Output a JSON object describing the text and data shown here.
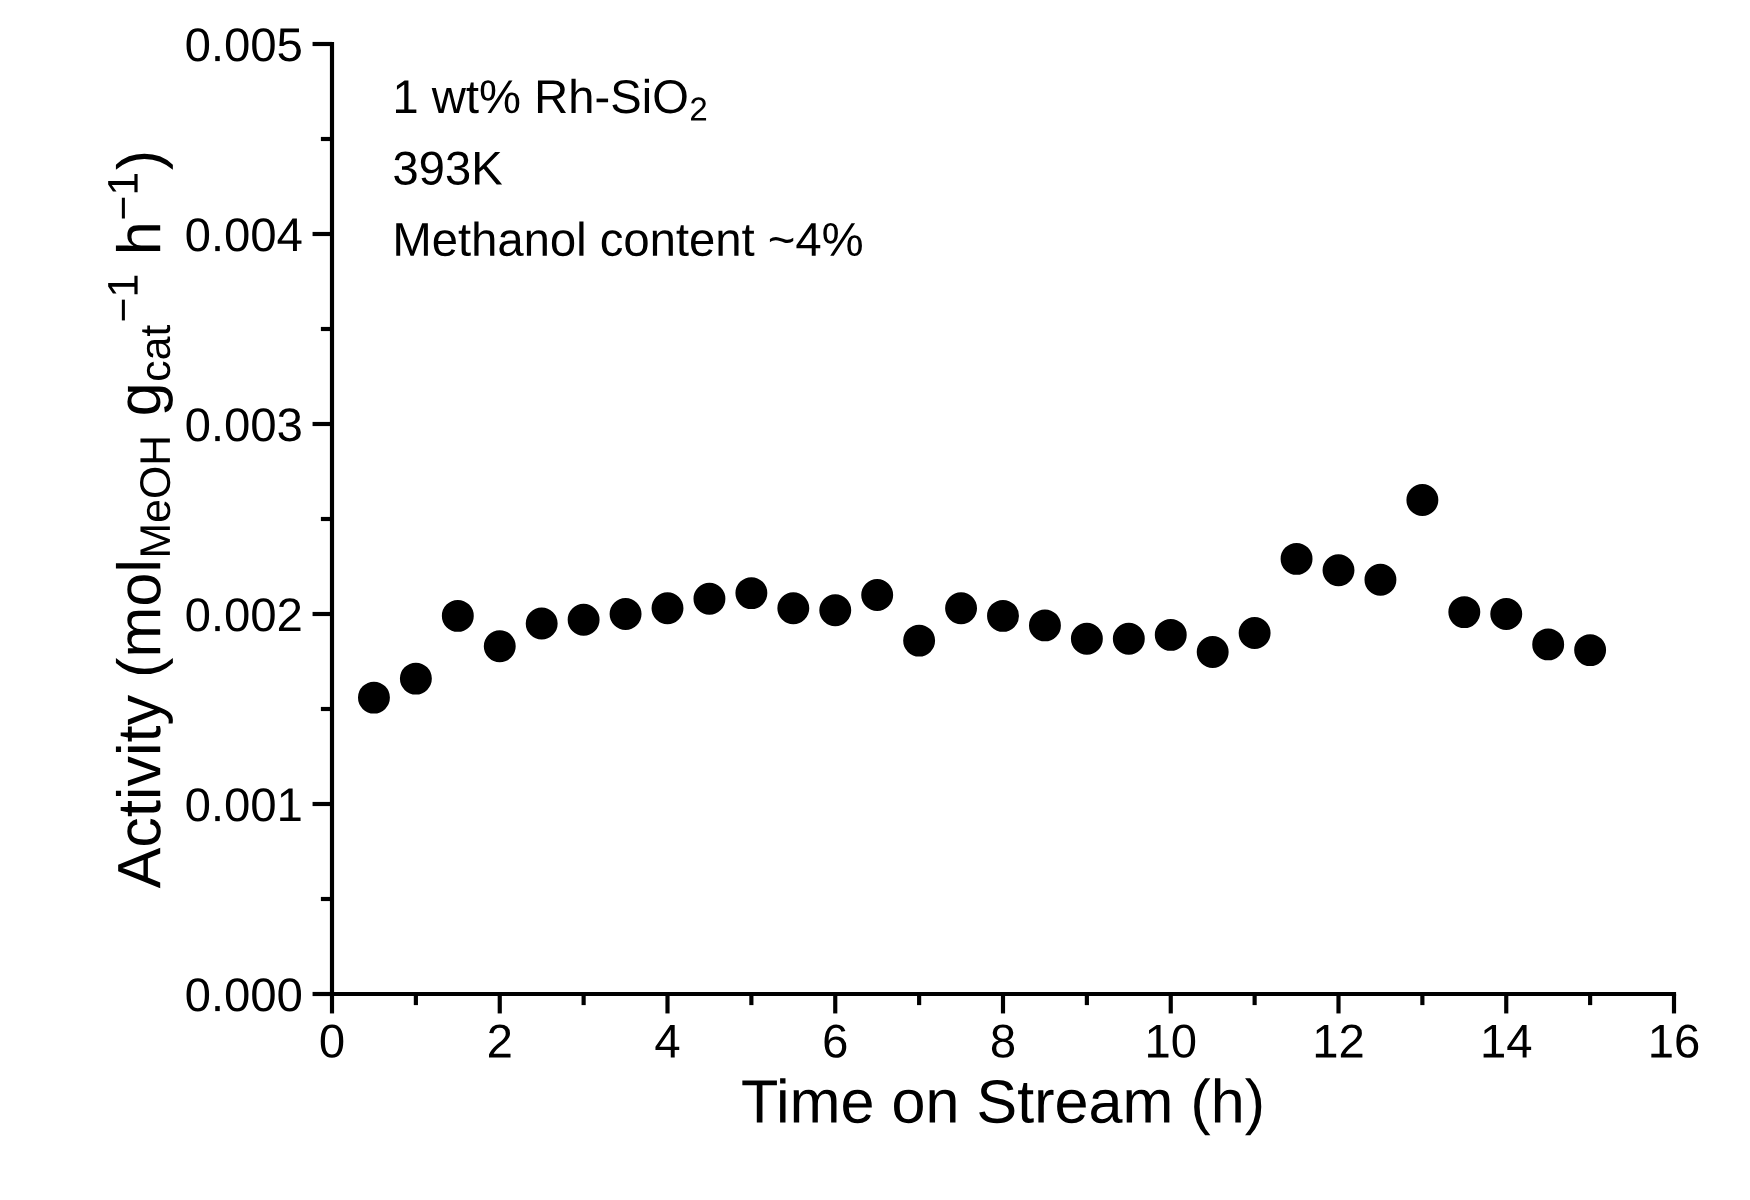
{
  "chart_data": {
    "type": "scatter",
    "xlabel": "Time on Stream (h)",
    "ylabel": "Activity (mol$_{MeOH}$ g$_{cat}$$^{−1}$ h$^{−1}$)",
    "annotations": [
      "1 wt% Rh-SiO$_{2}$",
      "393K",
      "Methanol content ~4%"
    ],
    "x": [
      0.5,
      1,
      1.5,
      2,
      2.5,
      3,
      3.5,
      4,
      4.5,
      5,
      5.5,
      6,
      6.5,
      7,
      7.5,
      8,
      8.5,
      9,
      9.5,
      10,
      10.5,
      11,
      11.5,
      12,
      12.5,
      13,
      13.5,
      14,
      14.5,
      15
    ],
    "series": [
      {
        "color": "#000000",
        "values": [
          0.00156,
          0.00166,
          0.00199,
          0.00183,
          0.00195,
          0.00197,
          0.002,
          0.00203,
          0.00208,
          0.00211,
          0.00203,
          0.00202,
          0.0021,
          0.00186,
          0.00203,
          0.00199,
          0.00194,
          0.00187,
          0.00187,
          0.00189,
          0.0018,
          0.0019,
          0.00229,
          0.00223,
          0.00218,
          0.0026,
          0.00201,
          0.002,
          0.00184,
          0.00181
        ]
      }
    ],
    "xlim": [
      0,
      16
    ],
    "xticks": [
      0,
      2,
      4,
      6,
      8,
      10,
      12,
      14,
      16
    ],
    "ylim": [
      0,
      0.005
    ],
    "yticks": [
      {
        "value": 0,
        "label": "0.000"
      },
      0.001,
      0.002,
      0.003,
      0.004,
      0.005
    ],
    "marker": "circle",
    "grid": false,
    "legend": false
  }
}
